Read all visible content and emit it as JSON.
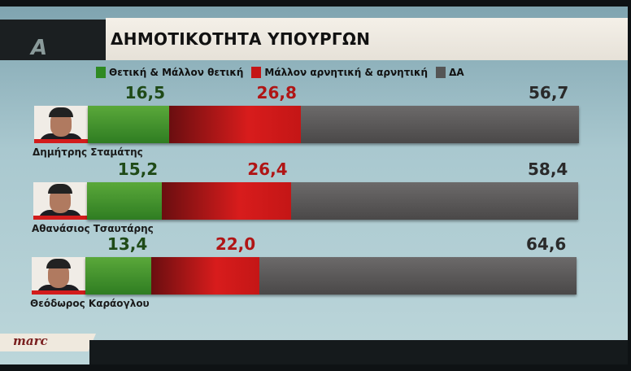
{
  "header": {
    "logo": "A",
    "title": "ΔΗΜΟΤΙΚΟΤΗΤΑ ΥΠΟΥΡΓΩΝ"
  },
  "footer": {
    "source": "marc"
  },
  "chart_data": {
    "type": "bar",
    "orientation": "horizontal",
    "stacked": true,
    "title": "ΔΗΜΟΤΙΚΟΤΗΤΑ ΥΠΟΥΡΓΩΝ",
    "categories": [
      "Δημήτρης Σταμάτης",
      "Αθανάσιος Τσαυτάρης",
      "Θεόδωρος Καράογλου"
    ],
    "series": [
      {
        "name": "Θετική & Μάλλον θετική",
        "color": "#3f922c",
        "values": [
          16.5,
          15.2,
          13.4
        ],
        "labels": [
          "16,5",
          "15,2",
          "13,4"
        ],
        "label_color": "#1f4a17"
      },
      {
        "name": "Μάλλον αρνητική & αρνητική",
        "color": "#d01a1a",
        "values": [
          26.8,
          26.4,
          22.0
        ],
        "labels": [
          "26,8",
          "26,4",
          "22,0"
        ],
        "label_color": "#b01515"
      },
      {
        "name": "ΔΑ",
        "color": "#575555",
        "values": [
          56.7,
          58.4,
          64.6
        ],
        "labels": [
          "56,7",
          "58,4",
          "64,6"
        ],
        "label_color": "#2a2a2a"
      }
    ],
    "legend": "top",
    "xlim": [
      0,
      100
    ],
    "grid": false
  }
}
